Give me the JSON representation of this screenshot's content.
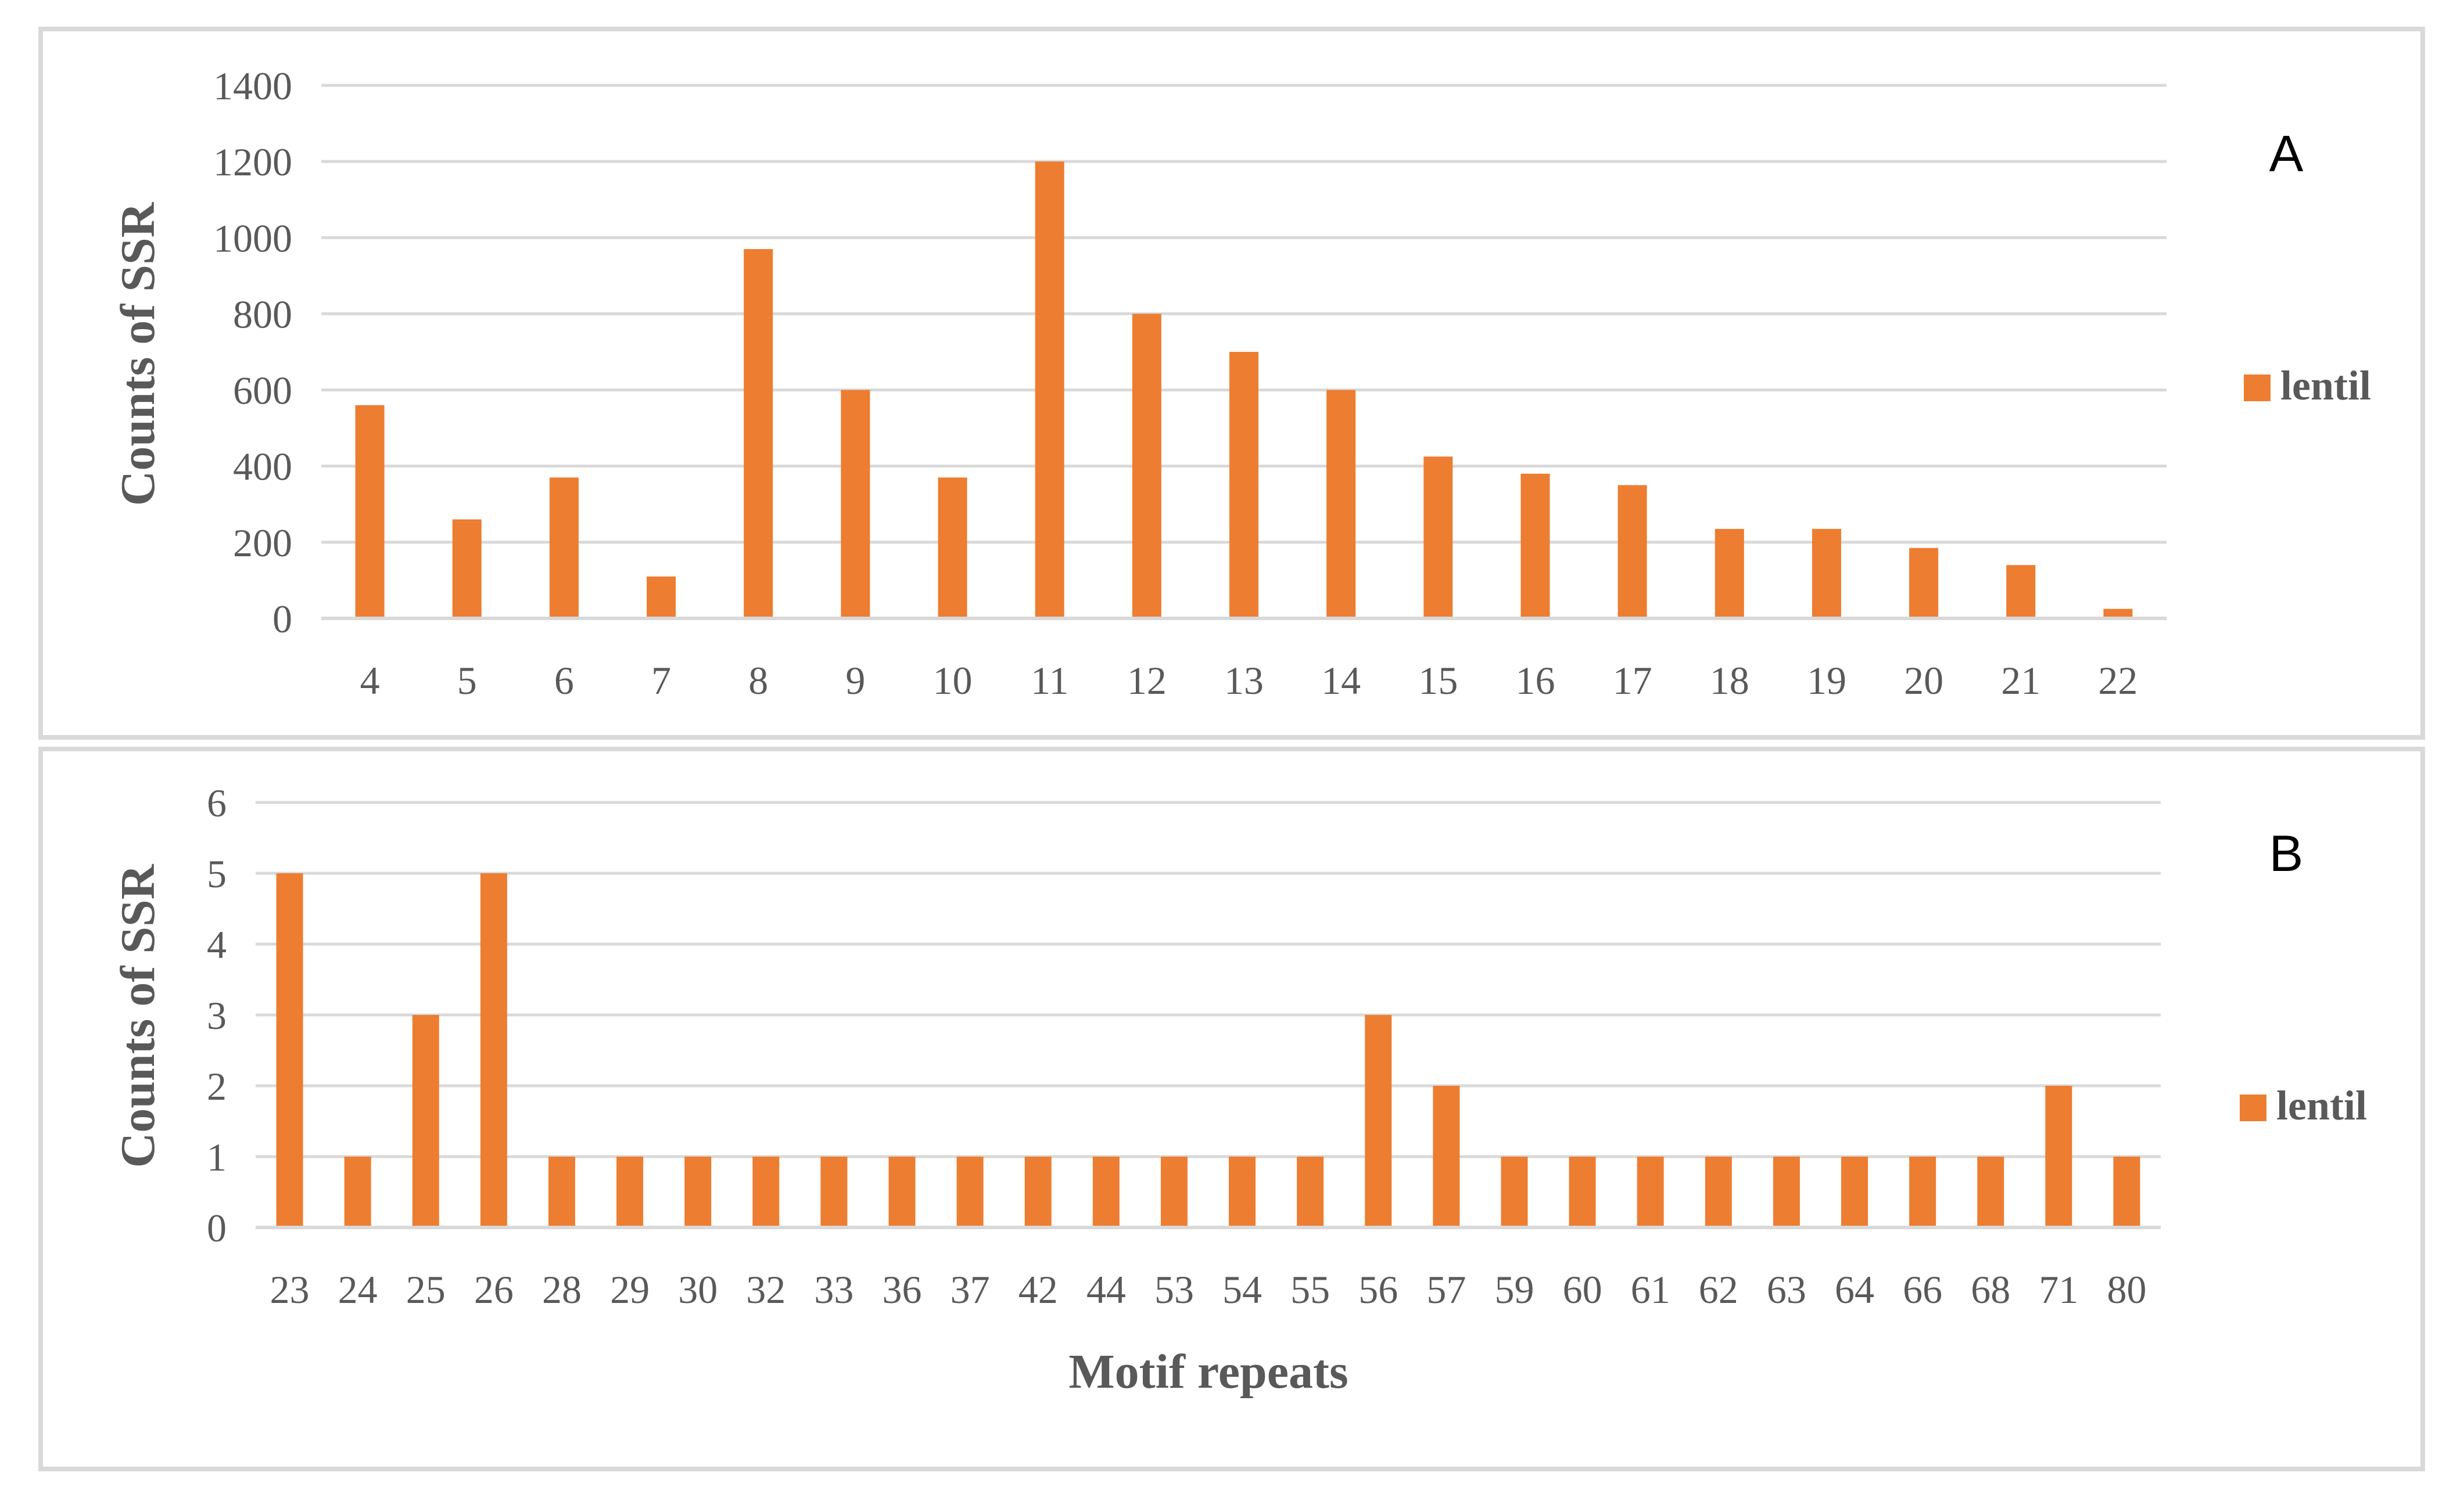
{
  "chart_data": [
    {
      "type": "bar",
      "panel_label": "A",
      "categories": [
        "4",
        "5",
        "6",
        "7",
        "8",
        "9",
        "10",
        "11",
        "12",
        "13",
        "14",
        "15",
        "16",
        "17",
        "18",
        "19",
        "20",
        "21",
        "22"
      ],
      "series": [
        {
          "name": "lentil",
          "values": [
            560,
            260,
            370,
            110,
            970,
            600,
            370,
            1200,
            800,
            700,
            600,
            425,
            380,
            350,
            235,
            235,
            185,
            140,
            25
          ]
        }
      ],
      "title": "",
      "xlabel": "",
      "ylabel": "Counts of SSR",
      "ylim": [
        0,
        1400
      ],
      "yticks": [
        "0",
        "200",
        "400",
        "600",
        "800",
        "1000",
        "1200",
        "1400"
      ],
      "grid": true,
      "legend": "right",
      "color": "#ed7d31"
    },
    {
      "type": "bar",
      "panel_label": "B",
      "categories": [
        "23",
        "24",
        "25",
        "26",
        "28",
        "29",
        "30",
        "32",
        "33",
        "36",
        "37",
        "42",
        "44",
        "53",
        "54",
        "55",
        "56",
        "57",
        "59",
        "60",
        "61",
        "62",
        "63",
        "64",
        "66",
        "68",
        "71",
        "80"
      ],
      "series": [
        {
          "name": "lentil",
          "values": [
            5,
            1,
            3,
            5,
            1,
            1,
            1,
            1,
            1,
            1,
            1,
            1,
            1,
            1,
            1,
            1,
            3,
            2,
            1,
            1,
            1,
            1,
            1,
            1,
            1,
            1,
            2,
            1
          ]
        }
      ],
      "title": "",
      "xlabel": "Motif repeats",
      "ylabel": "Counts of SSR",
      "ylim": [
        0,
        6
      ],
      "yticks": [
        "0",
        "1",
        "2",
        "3",
        "4",
        "5",
        "6"
      ],
      "grid": true,
      "legend": "right",
      "color": "#ed7d31"
    }
  ]
}
